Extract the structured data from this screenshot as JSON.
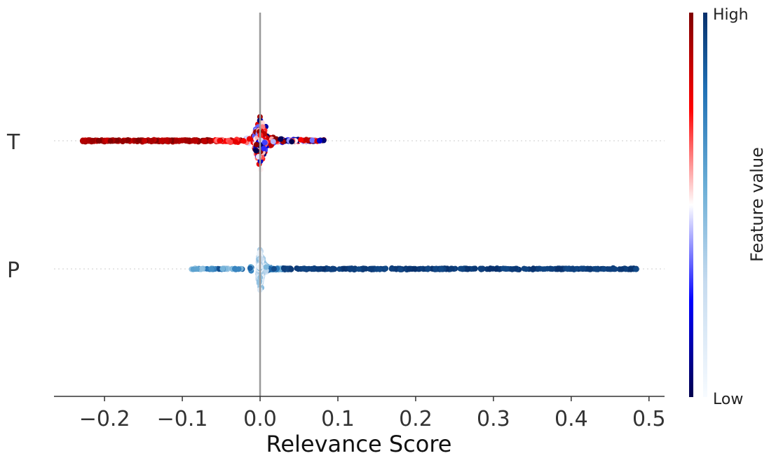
{
  "chart_data": {
    "type": "scatter",
    "subtype": "beeswarm",
    "title": "",
    "xlabel": "Relevance Score",
    "ylabel": "",
    "xlim": [
      -0.265,
      0.52
    ],
    "xticks": [
      -0.2,
      -0.1,
      0.0,
      0.1,
      0.2,
      0.3,
      0.4,
      0.5
    ],
    "xtick_labels": [
      "−0.2",
      "−0.1",
      "0.0",
      "0.1",
      "0.2",
      "0.3",
      "0.4",
      "0.5"
    ],
    "zero_line": 0.0,
    "grid": false,
    "categories": [
      "T",
      "P"
    ],
    "series": [
      {
        "name": "T",
        "x_range": [
          -0.23,
          0.083
        ],
        "colormap": "seismic",
        "samples": [
          -0.23,
          -0.22,
          -0.21,
          -0.2,
          -0.19,
          -0.18,
          -0.17,
          -0.16,
          -0.15,
          -0.14,
          -0.13,
          -0.12,
          -0.11,
          -0.1,
          -0.09,
          -0.08,
          -0.07,
          -0.06,
          -0.05,
          -0.04,
          -0.03,
          -0.02,
          -0.01,
          0.0,
          0.01,
          0.02,
          0.03,
          0.04,
          0.05,
          0.06,
          0.07,
          0.08
        ]
      },
      {
        "name": "P",
        "x_range": [
          -0.09,
          0.485
        ],
        "colormap": "blues",
        "samples": [
          -0.09,
          -0.075,
          -0.065,
          -0.05,
          -0.03,
          -0.01,
          0.0,
          0.01,
          0.02,
          0.03,
          0.05,
          0.08,
          0.1,
          0.13,
          0.16,
          0.2,
          0.24,
          0.28,
          0.31,
          0.33,
          0.35,
          0.37,
          0.39,
          0.41,
          0.42,
          0.43,
          0.455,
          0.46,
          0.485
        ]
      }
    ],
    "colorbar": {
      "title": "Feature value",
      "high_label": "High",
      "low_label": "Low",
      "colors_left": [
        "#00004d",
        "#0000ff",
        "#ffffff",
        "#ff0000",
        "#800000"
      ],
      "colors_right": [
        "#f7fbff",
        "#c6dbef",
        "#6baed6",
        "#2171b5",
        "#08306b"
      ]
    }
  }
}
